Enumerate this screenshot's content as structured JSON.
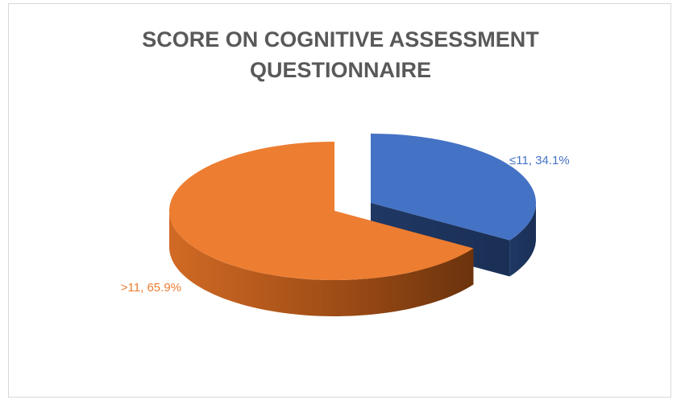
{
  "chart_data": {
    "type": "pie3d",
    "title": "SCORE ON COGNITIVE ASSESSMENT QUESTIONNAIRE",
    "categories": [
      "≤11",
      ">11"
    ],
    "values": [
      34.1,
      65.9
    ],
    "value_labels": [
      "≤11, 34.1%",
      ">11, 65.9%"
    ],
    "colors": [
      "#4472c4",
      "#ed7d31"
    ]
  }
}
